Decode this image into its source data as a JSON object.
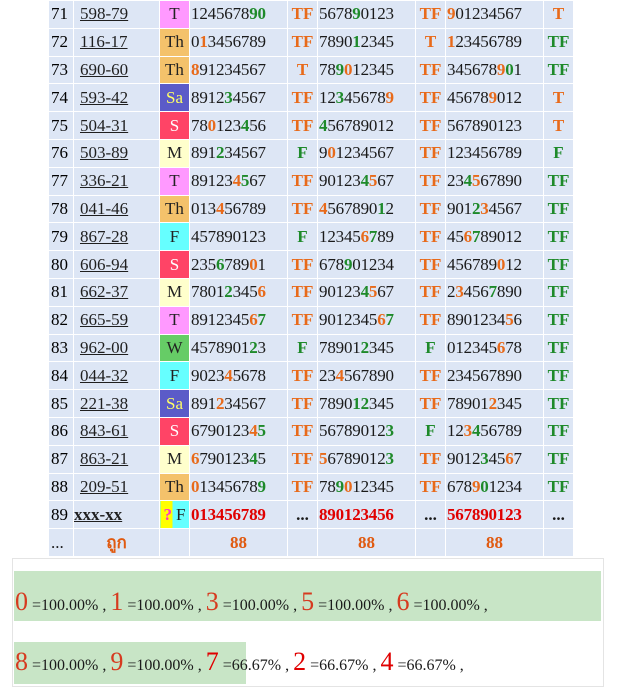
{
  "rows": [
    {
      "n": "71",
      "code": "598-79",
      "day": "T",
      "day_bg": "#ff99ff",
      "day_fg": "#222222",
      "d1": "124567890",
      "d1_hl": [
        [
          7,
          "g"
        ],
        [
          8,
          "g"
        ]
      ],
      "t1": "TF",
      "t1c": "o",
      "d2": "567890123",
      "d2_hl": [
        [
          4,
          "g"
        ]
      ],
      "t2": "TF",
      "t2c": "o",
      "d3": "901234567",
      "d3_hl": [
        [
          0,
          "o"
        ]
      ],
      "t3": "T",
      "t3c": "o"
    },
    {
      "n": "72",
      "code": "116-17",
      "day": "Th",
      "day_bg": "#f4c26b",
      "day_fg": "#222222",
      "d1": "013456789",
      "d1_hl": [
        [
          1,
          "o"
        ]
      ],
      "t1": "TF",
      "t1c": "o",
      "d2": "789012345",
      "d2_hl": [
        [
          4,
          "g"
        ]
      ],
      "t2": "T",
      "t2c": "o",
      "d3": "123456789",
      "d3_hl": [
        [
          0,
          "o"
        ]
      ],
      "t3": "TF",
      "t3c": "g"
    },
    {
      "n": "73",
      "code": "690-60",
      "day": "Th",
      "day_bg": "#f4c26b",
      "day_fg": "#222222",
      "d1": "891234567",
      "d1_hl": [
        [
          0,
          "o"
        ]
      ],
      "t1": "T",
      "t1c": "o",
      "d2": "789012345",
      "d2_hl": [
        [
          2,
          "g"
        ],
        [
          3,
          "o"
        ]
      ],
      "t2": "TF",
      "t2c": "o",
      "d3": "345678901",
      "d3_hl": [
        [
          6,
          "o"
        ],
        [
          7,
          "g"
        ]
      ],
      "t3": "TF",
      "t3c": "g"
    },
    {
      "n": "74",
      "code": "593-42",
      "day": "Sa",
      "day_bg": "#5b5bc8",
      "day_fg": "#ffff66",
      "d1": "891234567",
      "d1_hl": [
        [
          4,
          "g"
        ]
      ],
      "t1": "TF",
      "t1c": "o",
      "d2": "123456789",
      "d2_hl": [
        [
          2,
          "g"
        ],
        [
          8,
          "o"
        ]
      ],
      "t2": "TF",
      "t2c": "o",
      "d3": "456789012",
      "d3_hl": [
        [
          5,
          "o"
        ]
      ],
      "t3": "T",
      "t3c": "o"
    },
    {
      "n": "75",
      "code": "504-31",
      "day": "S",
      "day_bg": "#ff4466",
      "day_fg": "#ffffff",
      "d1": "780123456",
      "d1_hl": [
        [
          2,
          "o"
        ],
        [
          6,
          "g"
        ]
      ],
      "t1": "TF",
      "t1c": "o",
      "d2": "456789012",
      "d2_hl": [
        [
          0,
          "g"
        ]
      ],
      "t2": "TF",
      "t2c": "o",
      "d3": "567890123",
      "d3_hl": [],
      "t3": "T",
      "t3c": "o"
    },
    {
      "n": "76",
      "code": "503-89",
      "day": "M",
      "day_bg": "#ffffcc",
      "day_fg": "#222222",
      "d1": "891234567",
      "d1_hl": [
        [
          3,
          "g"
        ]
      ],
      "t1": "F",
      "t1c": "g",
      "d2": "901234567",
      "d2_hl": [
        [
          1,
          "o"
        ]
      ],
      "t2": "TF",
      "t2c": "o",
      "d3": "123456789",
      "d3_hl": [],
      "t3": "F",
      "t3c": "g"
    },
    {
      "n": "77",
      "code": "336-21",
      "day": "T",
      "day_bg": "#ff99ff",
      "day_fg": "#222222",
      "d1": "891234567",
      "d1_hl": [
        [
          5,
          "o"
        ],
        [
          6,
          "g"
        ]
      ],
      "t1": "TF",
      "t1c": "o",
      "d2": "901234567",
      "d2_hl": [
        [
          5,
          "g"
        ],
        [
          6,
          "o"
        ]
      ],
      "t2": "TF",
      "t2c": "o",
      "d3": "234567890",
      "d3_hl": [
        [
          2,
          "g"
        ],
        [
          3,
          "o"
        ]
      ],
      "t3": "TF",
      "t3c": "g"
    },
    {
      "n": "78",
      "code": "041-46",
      "day": "Th",
      "day_bg": "#f4c26b",
      "day_fg": "#222222",
      "d1": "013456789",
      "d1_hl": [
        [
          3,
          "o"
        ]
      ],
      "t1": "TF",
      "t1c": "o",
      "d2": "456789012",
      "d2_hl": [
        [
          0,
          "o"
        ],
        [
          7,
          "g"
        ]
      ],
      "t2": "TF",
      "t2c": "o",
      "d3": "901234567",
      "d3_hl": [
        [
          3,
          "g"
        ],
        [
          4,
          "o"
        ]
      ],
      "t3": "TF",
      "t3c": "g"
    },
    {
      "n": "79",
      "code": "867-28",
      "day": "F",
      "day_bg": "#66ffff",
      "day_fg": "#222222",
      "d1": "457890123",
      "d1_hl": [],
      "t1": "F",
      "t1c": "g",
      "d2": "123456789",
      "d2_hl": [
        [
          5,
          "o"
        ],
        [
          6,
          "g"
        ]
      ],
      "t2": "TF",
      "t2c": "o",
      "d3": "456789012",
      "d3_hl": [
        [
          2,
          "o"
        ],
        [
          3,
          "g"
        ]
      ],
      "t3": "TF",
      "t3c": "g"
    },
    {
      "n": "80",
      "code": "606-94",
      "day": "S",
      "day_bg": "#ff4466",
      "day_fg": "#ffffff",
      "d1": "235678901",
      "d1_hl": [
        [
          3,
          "g"
        ],
        [
          7,
          "o"
        ]
      ],
      "t1": "TF",
      "t1c": "o",
      "d2": "678901234",
      "d2_hl": [
        [
          3,
          "g"
        ]
      ],
      "t2": "TF",
      "t2c": "o",
      "d3": "456789012",
      "d3_hl": [
        [
          6,
          "o"
        ]
      ],
      "t3": "TF",
      "t3c": "g"
    },
    {
      "n": "81",
      "code": "662-37",
      "day": "M",
      "day_bg": "#ffffcc",
      "day_fg": "#222222",
      "d1": "780123456",
      "d1_hl": [
        [
          4,
          "g"
        ],
        [
          8,
          "o"
        ]
      ],
      "t1": "TF",
      "t1c": "o",
      "d2": "901234567",
      "d2_hl": [
        [
          5,
          "g"
        ],
        [
          6,
          "o"
        ]
      ],
      "t2": "TF",
      "t2c": "o",
      "d3": "234567890",
      "d3_hl": [
        [
          1,
          "o"
        ],
        [
          5,
          "g"
        ]
      ],
      "t3": "TF",
      "t3c": "g"
    },
    {
      "n": "82",
      "code": "665-59",
      "day": "T",
      "day_bg": "#ff99ff",
      "day_fg": "#222222",
      "d1": "891234567",
      "d1_hl": [
        [
          7,
          "o"
        ],
        [
          8,
          "g"
        ]
      ],
      "t1": "TF",
      "t1c": "o",
      "d2": "901234567",
      "d2_hl": [
        [
          7,
          "o"
        ],
        [
          8,
          "g"
        ]
      ],
      "t2": "TF",
      "t2c": "o",
      "d3": "890123456",
      "d3_hl": [
        [
          7,
          "o"
        ]
      ],
      "t3": "TF",
      "t3c": "g"
    },
    {
      "n": "83",
      "code": "962-00",
      "day": "W",
      "day_bg": "#66cc66",
      "day_fg": "#222222",
      "d1": "457890123",
      "d1_hl": [
        [
          7,
          "g"
        ]
      ],
      "t1": "F",
      "t1c": "g",
      "d2": "789012345",
      "d2_hl": [
        [
          5,
          "g"
        ]
      ],
      "t2": "F",
      "t2c": "g",
      "d3": "012345678",
      "d3_hl": [
        [
          6,
          "o"
        ]
      ],
      "t3": "TF",
      "t3c": "g"
    },
    {
      "n": "84",
      "code": "044-32",
      "day": "F",
      "day_bg": "#66ffff",
      "day_fg": "#222222",
      "d1": "902345678",
      "d1_hl": [
        [
          4,
          "o"
        ]
      ],
      "t1": "TF",
      "t1c": "o",
      "d2": "234567890",
      "d2_hl": [
        [
          2,
          "o"
        ]
      ],
      "t2": "TF",
      "t2c": "o",
      "d3": "234567890",
      "d3_hl": [],
      "t3": "TF",
      "t3c": "g"
    },
    {
      "n": "85",
      "code": "221-38",
      "day": "Sa",
      "day_bg": "#5b5bc8",
      "day_fg": "#ffff66",
      "d1": "891234567",
      "d1_hl": [
        [
          3,
          "o"
        ]
      ],
      "t1": "TF",
      "t1c": "o",
      "d2": "789012345",
      "d2_hl": [
        [
          4,
          "g"
        ],
        [
          5,
          "g"
        ]
      ],
      "t2": "TF",
      "t2c": "o",
      "d3": "789012345",
      "d3_hl": [
        [
          5,
          "o"
        ]
      ],
      "t3": "TF",
      "t3c": "g"
    },
    {
      "n": "86",
      "code": "843-61",
      "day": "S",
      "day_bg": "#ff4466",
      "day_fg": "#ffffff",
      "d1": "679012345",
      "d1_hl": [
        [
          7,
          "o"
        ],
        [
          8,
          "g"
        ]
      ],
      "t1": "TF",
      "t1c": "o",
      "d2": "567890123",
      "d2_hl": [
        [
          8,
          "g"
        ]
      ],
      "t2": "F",
      "t2c": "g",
      "d3": "123456789",
      "d3_hl": [
        [
          2,
          "o"
        ],
        [
          3,
          "g"
        ]
      ],
      "t3": "TF",
      "t3c": "g"
    },
    {
      "n": "87",
      "code": "863-21",
      "day": "M",
      "day_bg": "#ffffcc",
      "day_fg": "#222222",
      "d1": "679012345",
      "d1_hl": [
        [
          0,
          "o"
        ],
        [
          7,
          "g"
        ]
      ],
      "t1": "TF",
      "t1c": "o",
      "d2": "567890123",
      "d2_hl": [
        [
          0,
          "o"
        ],
        [
          8,
          "g"
        ]
      ],
      "t2": "TF",
      "t2c": "o",
      "d3": "901234567",
      "d3_hl": [
        [
          4,
          "g"
        ],
        [
          7,
          "o"
        ]
      ],
      "t3": "TF",
      "t3c": "g"
    },
    {
      "n": "88",
      "code": "209-51",
      "day": "Th",
      "day_bg": "#f4c26b",
      "day_fg": "#222222",
      "d1": "013456789",
      "d1_hl": [
        [
          0,
          "o"
        ],
        [
          8,
          "g"
        ]
      ],
      "t1": "TF",
      "t1c": "o",
      "d2": "789012345",
      "d2_hl": [
        [
          2,
          "g"
        ],
        [
          3,
          "o"
        ]
      ],
      "t2": "TF",
      "t2c": "o",
      "d3": "678901234",
      "d3_hl": [
        [
          3,
          "o"
        ],
        [
          4,
          "g"
        ]
      ],
      "t3": "TF",
      "t3c": "g"
    }
  ],
  "predict": {
    "n": "89",
    "code": "xxx-xx",
    "q": "?",
    "day": "F",
    "d1": "013456789",
    "t1": "...",
    "d2": "890123456",
    "t2": "...",
    "d3": "567890123",
    "t3": "..."
  },
  "summary": {
    "n": "...",
    "label": "ถูก",
    "v1": "88",
    "v2": "88",
    "v3": "88"
  },
  "percentages": {
    "line1": [
      {
        "digit": "0",
        "value": "=100.00%"
      },
      {
        "digit": "1",
        "value": "=100.00%"
      },
      {
        "digit": "3",
        "value": "=100.00%"
      },
      {
        "digit": "5",
        "value": "=100.00%"
      },
      {
        "digit": "6",
        "value": "=100.00%"
      }
    ],
    "line2": [
      {
        "digit": "8",
        "value": "=100.00%"
      },
      {
        "digit": "9",
        "value": "=100.00%"
      },
      {
        "digit": "7",
        "value": "=66.67%"
      },
      {
        "digit": "2",
        "value": "=66.67%"
      },
      {
        "digit": "4",
        "value": "=66.67%"
      }
    ],
    "separator": ","
  }
}
